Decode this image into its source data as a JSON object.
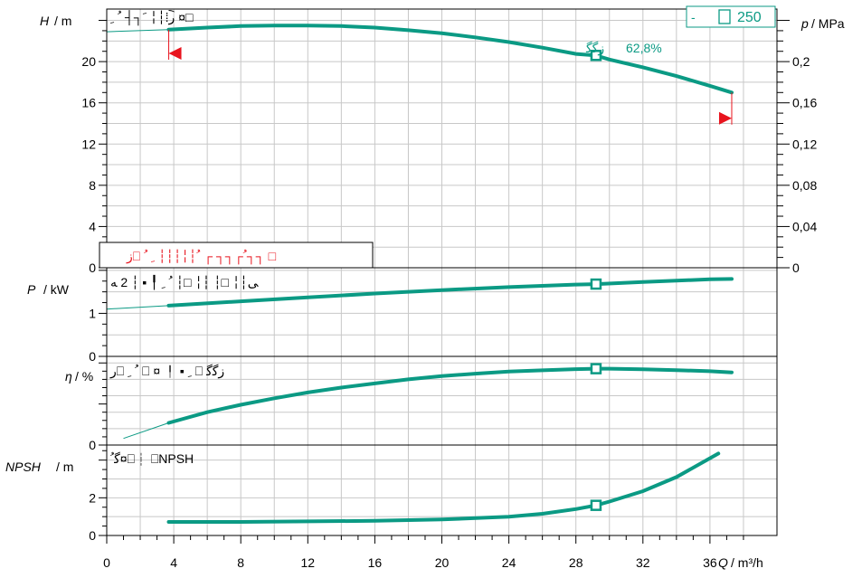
{
  "chart_data": [
    {
      "type": "line",
      "panel": "head",
      "xlabel": "Q",
      "xunit": "m³/h",
      "ylabel": "H",
      "yunit": "m",
      "y2label": "p",
      "y2unit": "MPa",
      "xlim": [
        0,
        40
      ],
      "ylim": [
        0,
        25
      ],
      "x_ticks": [
        "0",
        "4",
        "8",
        "12",
        "16",
        "20",
        "24",
        "28",
        "32",
        "36"
      ],
      "y_ticks": [
        "0",
        "4",
        "8",
        "12",
        "16",
        "20"
      ],
      "y2_ticks": [
        "0",
        "0,04",
        "0,08",
        "0,12",
        "0,16",
        "0,2"
      ],
      "legend_label": "250",
      "legend_prefix": "-",
      "title_text": "ﺭ︡⁞┆╎ ﹶ┐┤ ﹸ ﹺ ¤□",
      "footer_text": "ﺯ⎕ ﹸ┌┐┐ ┌ ﹸ┆╎┆┆┆ ﹺ ﹸ┐┐ □",
      "efficiency_label": "62,8%",
      "efficiency_prefix": "ﺯﮔﮔ",
      "operating_point": {
        "x": 29.2,
        "y": 20.6
      },
      "series": [
        {
          "x": [
            3.7,
            6,
            8,
            10,
            12,
            14,
            16,
            18,
            20,
            22,
            24,
            26,
            28,
            29.2,
            30,
            32,
            34,
            36,
            37.3
          ],
          "y": [
            23.1,
            23.3,
            23.45,
            23.5,
            23.5,
            23.45,
            23.3,
            23.05,
            22.75,
            22.35,
            21.9,
            21.35,
            20.75,
            20.6,
            20.2,
            19.45,
            18.6,
            17.65,
            17.0
          ]
        }
      ],
      "extrapolation": {
        "x": [
          0,
          3.7
        ],
        "y": [
          22.9,
          23.1
        ]
      },
      "limits": [
        {
          "x": 3.7,
          "y_top": 23.1,
          "y_arrow": 20.8,
          "side": "left"
        },
        {
          "x": 37.3,
          "y_top": 17.0,
          "y_arrow": 14.5,
          "side": "right"
        }
      ]
    },
    {
      "type": "line",
      "panel": "power",
      "ylabel": "P",
      "yunit": "kW",
      "ylim": [
        0,
        2
      ],
      "y_ticks": [
        "0",
        "1"
      ],
      "label_text": "ﻰ┆╎ □┆ ┆╎ □┆ ﹸ ﹺ ╿ ▪ ┆ 2 ﻪ",
      "operating_point": {
        "x": 29.2,
        "y": 1.68
      },
      "series": [
        {
          "x": [
            3.7,
            8,
            12,
            16,
            20,
            24,
            28,
            29.2,
            32,
            36,
            37.3
          ],
          "y": [
            1.18,
            1.28,
            1.37,
            1.46,
            1.54,
            1.61,
            1.67,
            1.68,
            1.73,
            1.79,
            1.8
          ]
        }
      ],
      "extrapolation": {
        "x": [
          0,
          3.7
        ],
        "y": [
          1.1,
          1.18
        ]
      }
    },
    {
      "type": "line",
      "panel": "efficiency",
      "ylabel": "η",
      "yunit": "%",
      "ylim": [
        0,
        100
      ],
      "y_ticks": [
        "0"
      ],
      "label_text": "ﺭ⎕ ﹸ ﹺ ⎕ ¤ ╿ ▪ ﹺ ⎕ ﺯﮔﮔ",
      "operating_point": {
        "x": 29.2,
        "y": 93
      },
      "series": [
        {
          "x": [
            3.7,
            6,
            8,
            10,
            12,
            14,
            16,
            18,
            20,
            22,
            24,
            26,
            28,
            29.2,
            30,
            32,
            34,
            36,
            37.3
          ],
          "y": [
            27,
            40,
            49,
            57,
            64,
            70,
            75,
            80,
            84,
            87,
            89.5,
            91,
            92.5,
            93,
            93,
            92.3,
            91.3,
            89.9,
            88.5
          ]
        }
      ],
      "extrapolation": {
        "x": [
          1,
          3.7
        ],
        "y": [
          8,
          27
        ]
      }
    },
    {
      "type": "line",
      "panel": "npsh",
      "ylabel": "NPSH",
      "yunit": "m",
      "ylim": [
        0,
        4.5
      ],
      "y_ticks": [
        "0",
        "2"
      ],
      "label_text": "ﮔﹸ¤⎕┆ ⎕NPSH",
      "operating_point": {
        "x": 29.2,
        "y": 1.6
      },
      "series": [
        {
          "x": [
            3.7,
            8,
            12,
            16,
            20,
            24,
            26,
            28,
            29.2,
            30,
            32,
            34,
            36.5
          ],
          "y": [
            0.72,
            0.72,
            0.75,
            0.78,
            0.85,
            1.0,
            1.15,
            1.4,
            1.6,
            1.8,
            2.35,
            3.1,
            4.35
          ]
        }
      ]
    }
  ]
}
